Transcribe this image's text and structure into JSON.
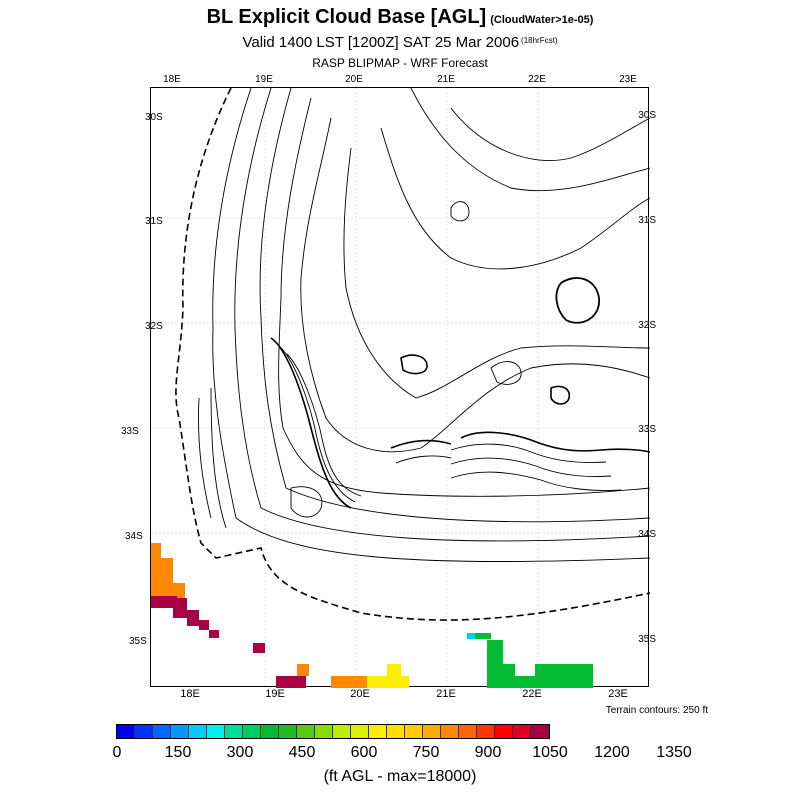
{
  "title": {
    "main": "BL Explicit Cloud Base [AGL]",
    "main_note": "(CloudWater>1e-05)",
    "valid": "Valid 1400 LST [1200Z] SAT 25 Mar 2006",
    "valid_note": "(18hrFcst)",
    "model": "RASP BLIPMAP - WRF Forecast"
  },
  "axes": {
    "top_lon": [
      "18E",
      "19E",
      "20E",
      "21E",
      "22E",
      "23E"
    ],
    "bottom_lon": [
      "18E",
      "19E",
      "20E",
      "21E",
      "22E",
      "23E"
    ],
    "left_lat": [
      "30S",
      "31S",
      "32S",
      "33S",
      "34S",
      "35S"
    ],
    "right_lat": [
      "30S",
      "31S",
      "32S",
      "33S",
      "34S",
      "35S"
    ]
  },
  "terrain_note": "Terrain contours: 250 ft",
  "colorbar": {
    "colors": [
      "#0000ff",
      "#0033ff",
      "#0066ff",
      "#0099ff",
      "#00ccff",
      "#00eeee",
      "#00dd99",
      "#00cc66",
      "#00bb33",
      "#22bb22",
      "#55cc11",
      "#88dd00",
      "#bbee00",
      "#ddee00",
      "#ffee00",
      "#ffdd00",
      "#ffcc00",
      "#ffaa00",
      "#ff8800",
      "#ff6600",
      "#ff3300",
      "#ff0000",
      "#dd0022",
      "#aa0044"
    ],
    "labels": [
      "0",
      "150",
      "300",
      "450",
      "600",
      "750",
      "900",
      "1050",
      "1200",
      "1350"
    ]
  },
  "units_label": "(ft AGL - max=18000)"
}
